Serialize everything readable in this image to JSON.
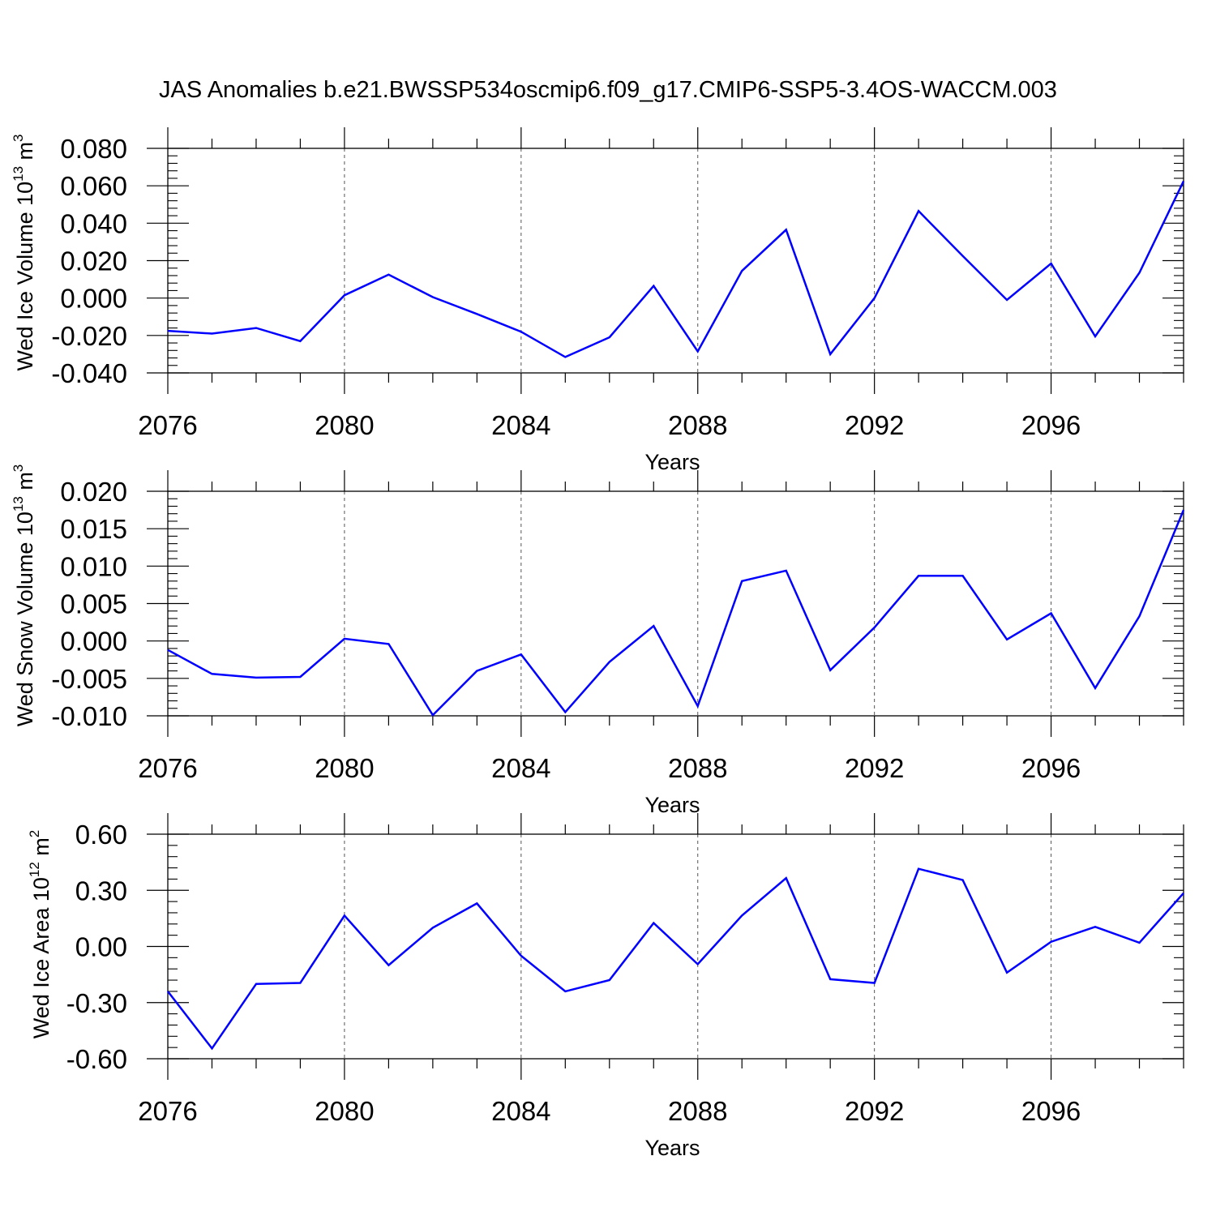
{
  "title": "JAS Anomalies b.e21.BWSSP534oscmip6.f09_g17.CMIP6-SSP5-3.4OS-WACCM.003",
  "colors": {
    "series": "#0000ff",
    "axis": "#000000",
    "grid": "#555555"
  },
  "chart_data": [
    {
      "type": "line",
      "ylabel": {
        "text": "Wed Ice Volume 10",
        "exp": "13",
        "unit": " m",
        "unit_exp": "3"
      },
      "xlabel": "Years",
      "xlim": [
        2076,
        2099
      ],
      "ylim": [
        -0.04,
        0.08
      ],
      "yticks": [
        -0.04,
        -0.02,
        0.0,
        0.02,
        0.04,
        0.06,
        0.08
      ],
      "ytick_labels": [
        "-0.040",
        "-0.020",
        "0.000",
        "0.020",
        "0.040",
        "0.060",
        "0.080"
      ],
      "xticks": [
        2076,
        2080,
        2084,
        2088,
        2092,
        2096
      ],
      "xtick_labels": [
        "2076",
        "2080",
        "2084",
        "2088",
        "2092",
        "2096"
      ],
      "x": [
        2076,
        2077,
        2078,
        2079,
        2080,
        2081,
        2082,
        2083,
        2084,
        2085,
        2086,
        2087,
        2088,
        2089,
        2090,
        2091,
        2092,
        2093,
        2094,
        2095,
        2096,
        2097,
        2098,
        2099
      ],
      "values": [
        -0.0175,
        -0.019,
        -0.016,
        -0.023,
        0.0015,
        0.0125,
        0.0005,
        -0.0085,
        -0.018,
        -0.0315,
        -0.021,
        0.0065,
        -0.0285,
        0.0145,
        0.0365,
        -0.03,
        0.0,
        0.0465,
        0.0225,
        -0.001,
        0.0185,
        -0.0205,
        0.0135,
        0.0625
      ]
    },
    {
      "type": "line",
      "ylabel": {
        "text": "Wed Snow Volume 10",
        "exp": "13",
        "unit": " m",
        "unit_exp": "3"
      },
      "xlabel": "Years",
      "xlim": [
        2076,
        2099
      ],
      "ylim": [
        -0.01,
        0.02
      ],
      "yticks": [
        -0.01,
        -0.005,
        0.0,
        0.005,
        0.01,
        0.015,
        0.02
      ],
      "ytick_labels": [
        "-0.010",
        "-0.005",
        "0.000",
        "0.005",
        "0.010",
        "0.015",
        "0.020"
      ],
      "xticks": [
        2076,
        2080,
        2084,
        2088,
        2092,
        2096
      ],
      "xtick_labels": [
        "2076",
        "2080",
        "2084",
        "2088",
        "2092",
        "2096"
      ],
      "x": [
        2076,
        2077,
        2078,
        2079,
        2080,
        2081,
        2082,
        2083,
        2084,
        2085,
        2086,
        2087,
        2088,
        2089,
        2090,
        2091,
        2092,
        2093,
        2094,
        2095,
        2096,
        2097,
        2098,
        2099
      ],
      "values": [
        -0.0012,
        -0.0044,
        -0.0049,
        -0.0048,
        0.0003,
        -0.0004,
        -0.0099,
        -0.004,
        -0.0018,
        -0.0095,
        -0.0028,
        0.002,
        -0.0087,
        0.008,
        0.0094,
        -0.0039,
        0.0018,
        0.0087,
        0.0087,
        0.0002,
        0.0037,
        -0.0063,
        0.0033,
        0.0175
      ]
    },
    {
      "type": "line",
      "ylabel": {
        "text": "Wed Ice Area 10",
        "exp": "12",
        "unit": " m",
        "unit_exp": "2"
      },
      "xlabel": "Years",
      "xlim": [
        2076,
        2099
      ],
      "ylim": [
        -0.6,
        0.6
      ],
      "yticks": [
        -0.6,
        -0.3,
        0.0,
        0.3,
        0.6
      ],
      "ytick_labels": [
        "-0.60",
        "-0.30",
        "0.00",
        "0.30",
        "0.60"
      ],
      "xticks": [
        2076,
        2080,
        2084,
        2088,
        2092,
        2096
      ],
      "xtick_labels": [
        "2076",
        "2080",
        "2084",
        "2088",
        "2092",
        "2096"
      ],
      "x": [
        2076,
        2077,
        2078,
        2079,
        2080,
        2081,
        2082,
        2083,
        2084,
        2085,
        2086,
        2087,
        2088,
        2089,
        2090,
        2091,
        2092,
        2093,
        2094,
        2095,
        2096,
        2097,
        2098,
        2099
      ],
      "values": [
        -0.24,
        -0.545,
        -0.2,
        -0.195,
        0.165,
        -0.1,
        0.1,
        0.23,
        -0.05,
        -0.24,
        -0.18,
        0.125,
        -0.095,
        0.165,
        0.365,
        -0.175,
        -0.195,
        0.415,
        0.355,
        -0.14,
        0.025,
        0.105,
        0.02,
        0.285
      ]
    }
  ]
}
